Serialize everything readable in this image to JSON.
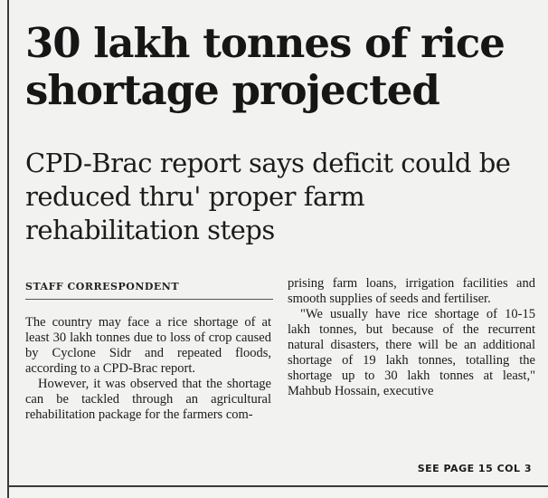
{
  "article": {
    "headline": "30 lakh tonnes of rice shortage projected",
    "subheadline": "CPD-Brac report says deficit could be reduced thru' proper farm rehabilitation steps",
    "byline": "Staff Correspondent",
    "left_column": {
      "paragraph_1": "The country may face a rice shortage of at least 30 lakh tonnes due to loss of crop caused by Cyclone Sidr and repeated floods, according to a CPD-Brac report.",
      "paragraph_2": "However, it was observed that the shortage can be tackled through an agricultural rehabilitation package for the farmers com-"
    },
    "right_column": {
      "paragraph_1": "prising farm loans, irrigation facilities and smooth supplies of seeds and fertiliser.",
      "paragraph_2": "\"We usually have rice shortage of 10-15 lakh tonnes, but because of the recurrent natural disasters, there will be an additional shortage of 19 lakh tonnes, totalling the shortage up to 30 lakh tonnes at least,\" Mahbub Hossain, executive"
    },
    "continuation": "SEE PAGE 15 COL 3"
  }
}
